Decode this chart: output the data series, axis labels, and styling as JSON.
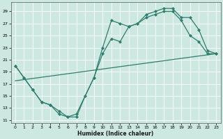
{
  "title": "",
  "xlabel": "Humidex (Indice chaleur)",
  "bg_color": "#cce8e0",
  "grid_color": "#ffffff",
  "line_color": "#2e7d6e",
  "xlim": [
    -0.5,
    23.5
  ],
  "ylim": [
    10.5,
    30.5
  ],
  "xticks": [
    0,
    1,
    2,
    3,
    4,
    5,
    6,
    7,
    8,
    9,
    10,
    11,
    12,
    13,
    14,
    15,
    16,
    17,
    18,
    19,
    20,
    21,
    22,
    23
  ],
  "yticks": [
    11,
    13,
    15,
    17,
    19,
    21,
    23,
    25,
    27,
    29
  ],
  "line1_x": [
    0,
    1,
    2,
    3,
    4,
    5,
    6,
    7,
    9,
    10,
    11,
    12,
    13,
    14,
    15,
    16,
    17,
    18,
    19,
    20,
    21,
    22,
    23
  ],
  "line1_y": [
    20,
    18,
    16,
    14,
    13.5,
    12,
    11.5,
    12,
    18,
    23,
    27.5,
    27,
    26.5,
    27,
    28.5,
    29,
    29.5,
    29.5,
    28,
    28,
    26,
    22.5,
    22
  ],
  "line2_x": [
    0,
    1,
    2,
    3,
    4,
    5,
    6,
    7,
    8,
    9,
    10,
    11,
    12,
    13,
    14,
    15,
    16,
    17,
    18,
    19,
    20,
    21,
    22,
    23
  ],
  "line2_y": [
    20,
    18,
    16,
    14,
    13.5,
    12.5,
    11.5,
    11.5,
    15,
    18,
    22,
    24.5,
    24,
    26.5,
    27,
    28,
    28.5,
    29,
    29,
    27.5,
    25,
    24,
    22,
    22
  ],
  "line3_x": [
    0,
    23
  ],
  "line3_y": [
    17.5,
    22
  ]
}
